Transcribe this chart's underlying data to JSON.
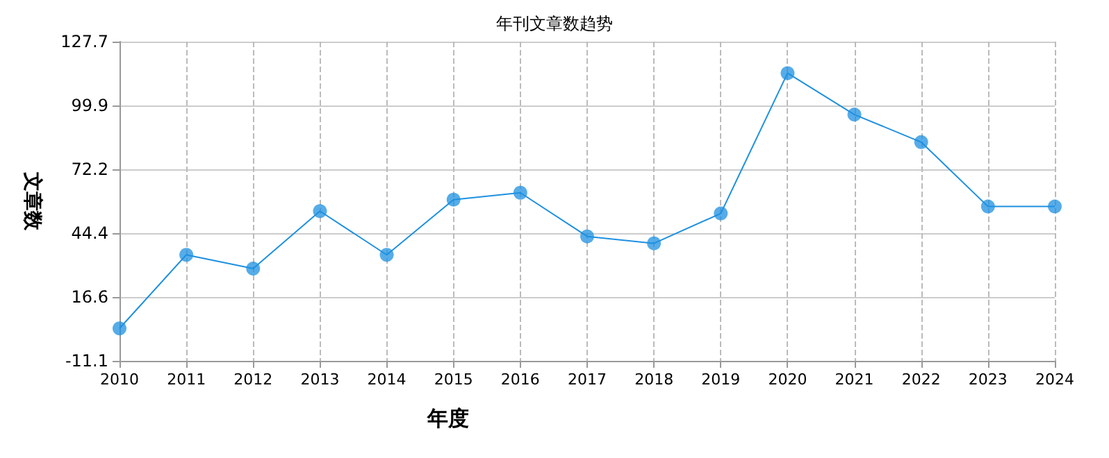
{
  "chart_data": {
    "type": "line",
    "title": "年刊文章数趋势",
    "xlabel": "年度",
    "ylabel": "文章数",
    "categories": [
      "2010",
      "2011",
      "2012",
      "2013",
      "2014",
      "2015",
      "2016",
      "2017",
      "2018",
      "2019",
      "2020",
      "2021",
      "2022",
      "2023",
      "2024"
    ],
    "series": [
      {
        "color": "#1e90e0",
        "values": [
          3,
          35,
          29,
          54,
          35,
          59,
          62,
          43,
          40,
          53,
          114,
          96,
          84,
          56,
          56
        ]
      }
    ],
    "ylim": [
      -11.1,
      127.7
    ],
    "yticks": [
      -11.1,
      16.6,
      44.4,
      72.2,
      99.9,
      127.7
    ],
    "grid": true,
    "marker": "circle",
    "line_style": "solid"
  }
}
